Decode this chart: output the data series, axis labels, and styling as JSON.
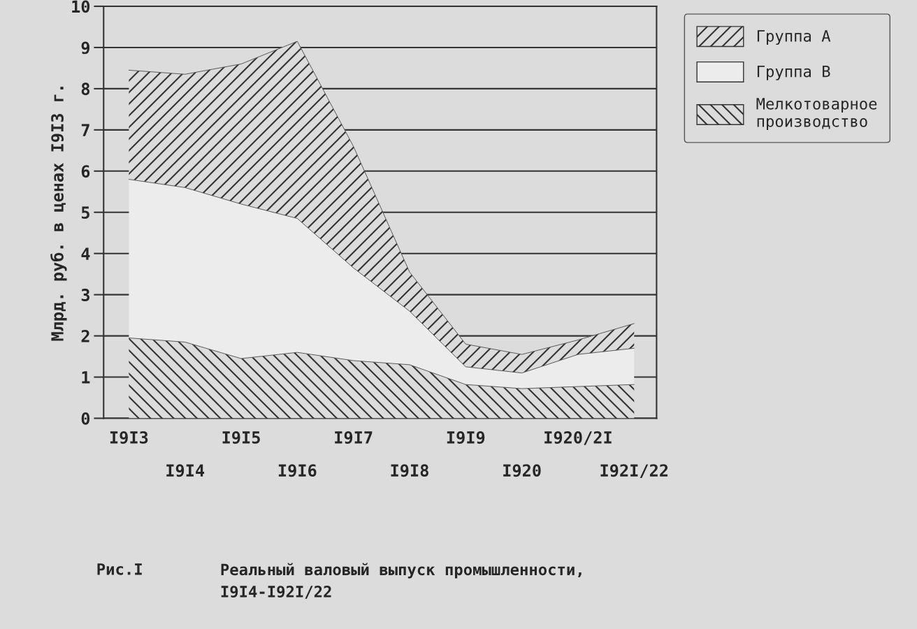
{
  "chart_data": {
    "type": "area",
    "stacked": true,
    "ylabel": "Млрд. руб. в ценах I9I3 г.",
    "categories": [
      "I9I3",
      "I9I4",
      "I9I5",
      "I9I6",
      "I9I7",
      "I9I8",
      "I9I9",
      "I920",
      "I920/2I",
      "I92I/22"
    ],
    "series": [
      {
        "name": "Мелкотоварное производство",
        "color": "#333333",
        "values": [
          1.95,
          1.85,
          1.45,
          1.6,
          1.4,
          1.3,
          0.82,
          0.72,
          0.77,
          0.82
        ]
      },
      {
        "name": "Группа В",
        "color": "#ececec",
        "values": [
          3.85,
          3.75,
          3.75,
          3.25,
          2.25,
          1.3,
          0.43,
          0.38,
          0.78,
          0.88
        ]
      },
      {
        "name": "Группа А",
        "color": "#333333",
        "values": [
          2.65,
          2.75,
          3.4,
          4.3,
          2.95,
          0.95,
          0.55,
          0.45,
          0.35,
          0.6
        ]
      }
    ],
    "ylim": [
      0,
      10
    ],
    "yticks": [
      0,
      1,
      2,
      3,
      4,
      5,
      6,
      7,
      8,
      9,
      10
    ],
    "grid": "y",
    "legend": "top right",
    "annotations": [
      "Рис.I",
      "Реальный валовый выпуск промышленности,\nI9I4-I92I/22"
    ]
  }
}
